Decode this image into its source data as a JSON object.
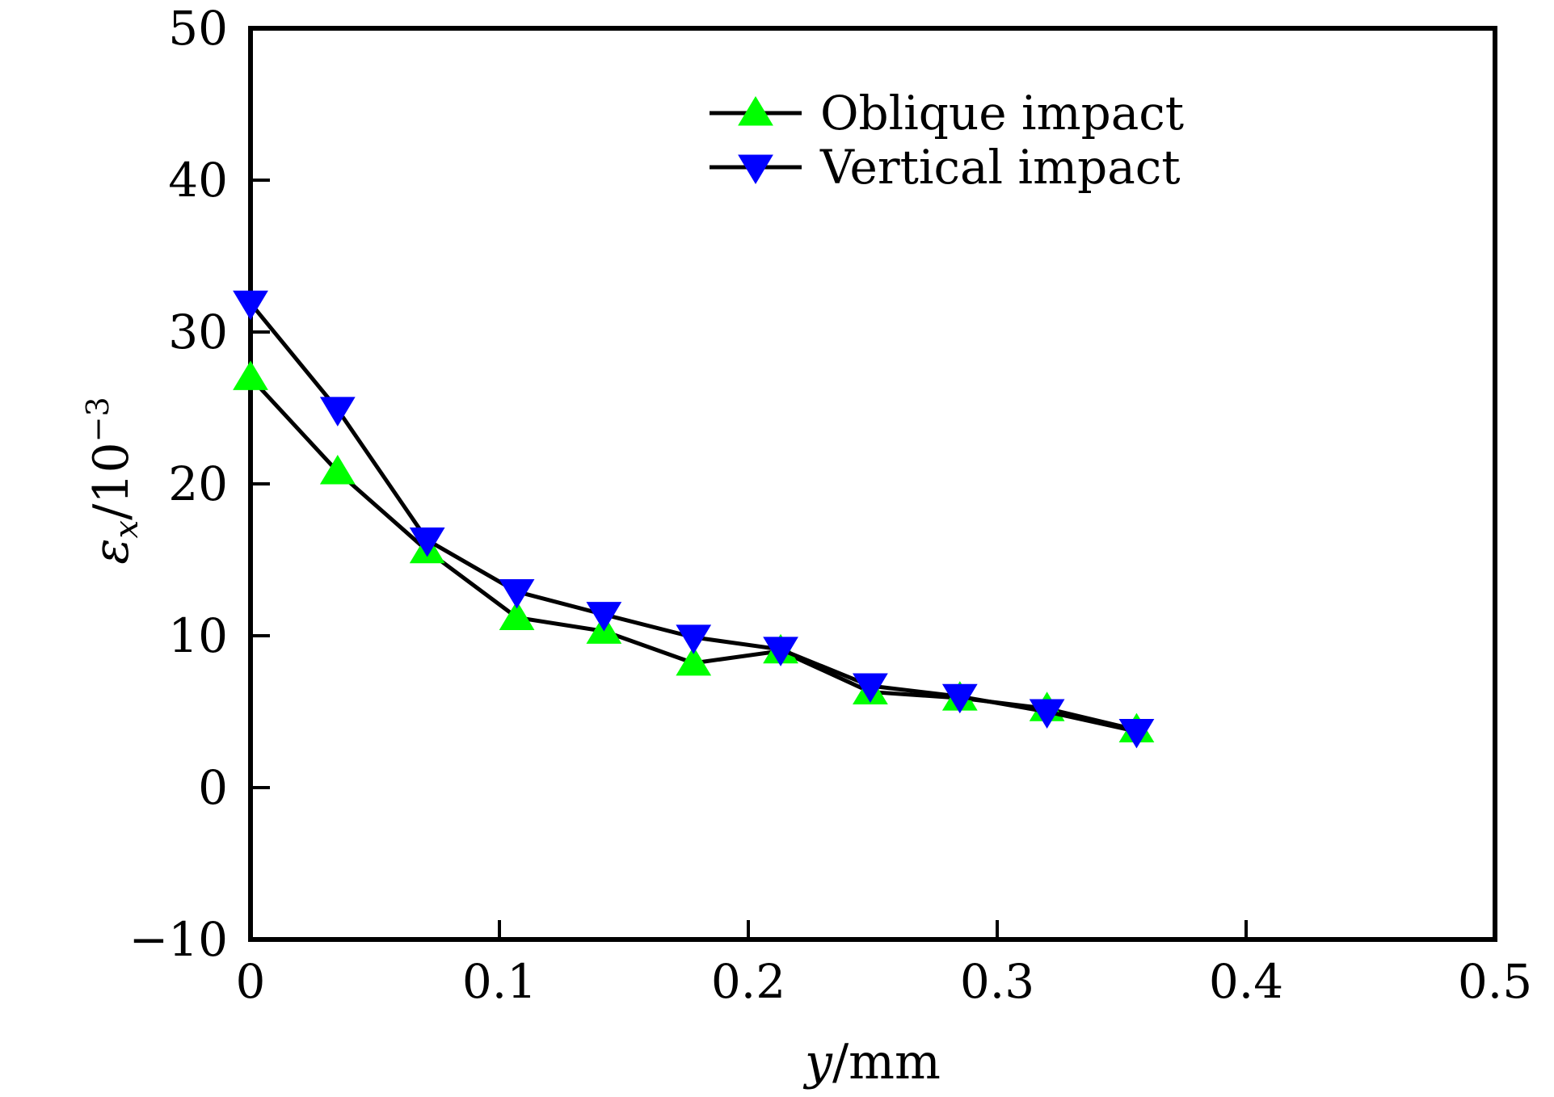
{
  "chart_data": {
    "type": "line",
    "xlabel": {
      "var": "y",
      "unit": "/mm"
    },
    "ylabel": {
      "var": "ε",
      "sub": "x",
      "unit": "/10",
      "exp": "−3"
    },
    "xlim": [
      0,
      0.5
    ],
    "ylim": [
      -10,
      50
    ],
    "xticks": [
      {
        "v": 0,
        "label": "0"
      },
      {
        "v": 0.1,
        "label": "0.1"
      },
      {
        "v": 0.2,
        "label": "0.2"
      },
      {
        "v": 0.3,
        "label": "0.3"
      },
      {
        "v": 0.4,
        "label": "0.4"
      },
      {
        "v": 0.5,
        "label": "0.5"
      }
    ],
    "yticks": [
      {
        "v": -10,
        "label": "−10"
      },
      {
        "v": 0,
        "label": "0"
      },
      {
        "v": 10,
        "label": "10"
      },
      {
        "v": 20,
        "label": "20"
      },
      {
        "v": 30,
        "label": "30"
      },
      {
        "v": 40,
        "label": "40"
      },
      {
        "v": 50,
        "label": "50"
      }
    ],
    "grid": false,
    "legend_position": "top",
    "series": [
      {
        "name": "Oblique impact",
        "color": "#00ff00",
        "marker": "triangle-up",
        "x": [
          0.0,
          0.035,
          0.071,
          0.107,
          0.142,
          0.178,
          0.213,
          0.249,
          0.285,
          0.32,
          0.356
        ],
        "y": [
          27.0,
          20.8,
          15.6,
          11.2,
          10.3,
          8.2,
          9.0,
          6.3,
          5.9,
          5.2,
          3.8
        ]
      },
      {
        "name": "Vertical impact",
        "color": "#0000ff",
        "marker": "triangle-down",
        "x": [
          0.0,
          0.035,
          0.071,
          0.107,
          0.142,
          0.178,
          0.213,
          0.249,
          0.285,
          0.32,
          0.356
        ],
        "y": [
          31.9,
          24.9,
          16.3,
          12.9,
          11.4,
          9.9,
          9.1,
          6.7,
          6.0,
          5.0,
          3.7
        ]
      }
    ]
  }
}
